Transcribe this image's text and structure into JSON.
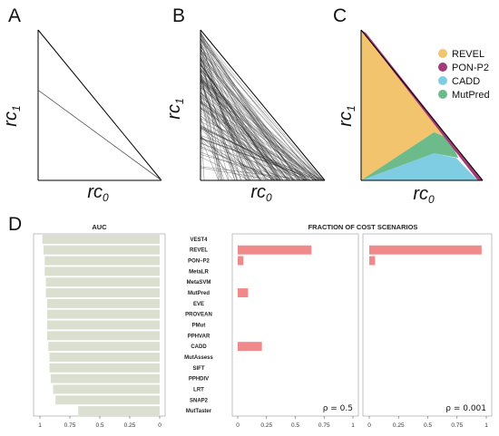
{
  "panels": {
    "a": {
      "letter": "A"
    },
    "b": {
      "letter": "B"
    },
    "c": {
      "letter": "C"
    },
    "d": {
      "letter": "D"
    }
  },
  "axes": {
    "x": {
      "main": "rc",
      "sub": "0"
    },
    "y": {
      "main": "rc",
      "sub": "1"
    }
  },
  "chart_data": [
    {
      "panel": "A",
      "type": "line",
      "title": "",
      "xlabel": "rc0",
      "ylabel": "rc1",
      "xlim": [
        0,
        1
      ],
      "ylim": [
        0,
        1
      ],
      "grid": false,
      "series": [
        {
          "x": [
            0,
            1
          ],
          "y": [
            0.6,
            0
          ]
        }
      ]
    },
    {
      "panel": "B",
      "type": "line",
      "title": "",
      "xlabel": "rc0",
      "ylabel": "rc1",
      "xlim": [
        0,
        1
      ],
      "ylim": [
        0,
        1
      ],
      "grid": false,
      "note_lines_count": 150
    },
    {
      "panel": "C",
      "type": "area",
      "title": "",
      "xlabel": "rc0",
      "ylabel": "rc1",
      "xlim": [
        0,
        1
      ],
      "ylim": [
        0,
        1
      ],
      "grid": false,
      "legend": "top-right",
      "series": [
        {
          "name": "REVEL",
          "color": "#F2C46E",
          "polygon": [
            [
              0,
              0
            ],
            [
              0,
              1
            ],
            [
              0.72,
              0.28
            ],
            [
              0.6,
              0.32
            ],
            [
              0,
              0
            ]
          ]
        },
        {
          "name": "PON-P2",
          "color": "#A33A78",
          "polygon": [
            [
              0,
              1
            ],
            [
              0.04,
              0.98
            ],
            [
              1,
              0
            ],
            [
              0.96,
              0
            ],
            [
              0,
              1
            ]
          ]
        },
        {
          "name": "CADD",
          "color": "#7FCDE3",
          "polygon": [
            [
              0,
              0
            ],
            [
              0.6,
              0.18
            ],
            [
              0.78,
              0.15
            ],
            [
              0.96,
              0
            ],
            [
              0,
              0
            ]
          ]
        },
        {
          "name": "MutPred",
          "color": "#6DBB8A",
          "polygon": [
            [
              0,
              0
            ],
            [
              0.6,
              0.32
            ],
            [
              0.72,
              0.28
            ],
            [
              0.8,
              0.15
            ],
            [
              0.6,
              0.18
            ],
            [
              0,
              0
            ]
          ]
        }
      ]
    },
    {
      "panel": "D",
      "type": "bar",
      "title": "AUC",
      "orientation": "horizontal",
      "xlim": [
        1,
        0
      ],
      "xticks": [
        "1",
        "0.75",
        "0.5",
        "0.25",
        "0"
      ],
      "categories": [
        "VEST4",
        "REVEL",
        "PON–P2",
        "MetaLR",
        "MetaSVM",
        "MutPred",
        "EVE",
        "PROVEAN",
        "PMut",
        "PPHVAR",
        "CADD",
        "MutAssess",
        "SIFT",
        "PPHDIV",
        "LRT",
        "SNAP2",
        "MutTaster"
      ],
      "values": [
        0.98,
        0.97,
        0.96,
        0.96,
        0.95,
        0.95,
        0.94,
        0.94,
        0.94,
        0.94,
        0.93,
        0.92,
        0.92,
        0.91,
        0.89,
        0.87,
        0.68
      ],
      "color": "#DADFD0"
    },
    {
      "panel": "D",
      "type": "bar",
      "title": "FRACTION OF COST SCENARIOS",
      "orientation": "horizontal",
      "xlim": [
        0,
        1
      ],
      "xticks": [
        "0",
        "0.25",
        "0.5",
        "0.75",
        "1"
      ],
      "annotation": "ρ = 0.5",
      "categories": [
        "VEST4",
        "REVEL",
        "PON–P2",
        "MetaLR",
        "MetaSVM",
        "MutPred",
        "EVE",
        "PROVEAN",
        "PMut",
        "PPHVAR",
        "CADD",
        "MutAssess",
        "SIFT",
        "PPHDIV",
        "LRT",
        "SNAP2",
        "MutTaster"
      ],
      "values": [
        0,
        0.64,
        0.05,
        0,
        0,
        0.09,
        0,
        0,
        0,
        0,
        0.21,
        0,
        0,
        0,
        0,
        0,
        0
      ],
      "color": "#F08A8A"
    },
    {
      "panel": "D",
      "type": "bar",
      "title": "",
      "orientation": "horizontal",
      "xlim": [
        0,
        1
      ],
      "xticks": [
        "0",
        "0.25",
        "0.5",
        "0.75",
        "1"
      ],
      "annotation": "ρ = 0.001",
      "categories": [
        "VEST4",
        "REVEL",
        "PON–P2",
        "MetaLR",
        "MetaSVM",
        "MutPred",
        "EVE",
        "PROVEAN",
        "PMut",
        "PPHVAR",
        "CADD",
        "MutAssess",
        "SIFT",
        "PPHDIV",
        "LRT",
        "SNAP2",
        "MutTaster"
      ],
      "values": [
        0,
        0.96,
        0.05,
        0,
        0,
        0,
        0,
        0,
        0,
        0,
        0,
        0,
        0,
        0,
        0,
        0,
        0
      ],
      "color": "#F08A8A"
    }
  ]
}
